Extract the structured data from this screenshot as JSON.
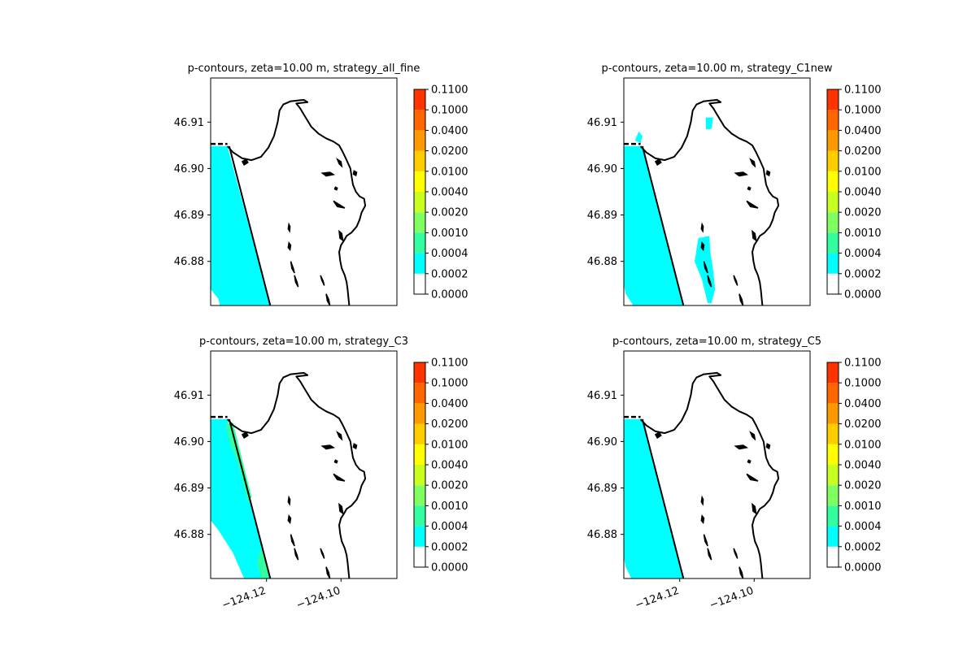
{
  "chart_data": [
    {
      "type": "heatmap",
      "title": "p-contours, zeta=10.00 m, strategy_all_fine",
      "xlabel": "",
      "ylabel": "",
      "xlim": [
        -124.135,
        -124.085
      ],
      "ylim": [
        46.8705,
        46.9195
      ],
      "x_ticks": [],
      "y_ticks": [
        {
          "value": 46.88,
          "label": "46.88"
        },
        {
          "value": 46.89,
          "label": "46.89"
        },
        {
          "value": 46.9,
          "label": "46.90"
        },
        {
          "value": 46.91,
          "label": "46.91"
        }
      ],
      "colorbar": {
        "levels": [
          "0.0000",
          "0.0002",
          "0.0004",
          "0.0010",
          "0.0020",
          "0.0040",
          "0.0100",
          "0.0200",
          "0.0400",
          "0.1000",
          "0.1100"
        ]
      },
      "shaded_regions": [
        {
          "level_index": 1,
          "band": "0.0002–0.0004",
          "polygon": [
            [
              -124.135,
              46.9048
            ],
            [
              -124.1305,
              46.9048
            ],
            [
              -124.119,
              46.8705
            ],
            [
              -124.1325,
              46.8705
            ],
            [
              -124.133,
              46.872
            ],
            [
              -124.135,
              46.874
            ]
          ]
        }
      ]
    },
    {
      "type": "heatmap",
      "title": "p-contours, zeta=10.00 m, strategy_C1new",
      "xlabel": "",
      "ylabel": "",
      "xlim": [
        -124.135,
        -124.085
      ],
      "ylim": [
        46.8705,
        46.9195
      ],
      "x_ticks": [],
      "y_ticks": [
        {
          "value": 46.88,
          "label": "46.88"
        },
        {
          "value": 46.89,
          "label": "46.89"
        },
        {
          "value": 46.9,
          "label": "46.90"
        },
        {
          "value": 46.91,
          "label": "46.91"
        }
      ],
      "colorbar": {
        "levels": [
          "0.0000",
          "0.0002",
          "0.0004",
          "0.0010",
          "0.0020",
          "0.0040",
          "0.0100",
          "0.0200",
          "0.0400",
          "0.1000",
          "0.1100"
        ]
      },
      "shaded_regions": [
        {
          "level_index": 1,
          "band": "0.0002–0.0004",
          "polygon": [
            [
              -124.135,
              46.9048
            ],
            [
              -124.13,
              46.9048
            ],
            [
              -124.119,
              46.8705
            ],
            [
              -124.1325,
              46.8705
            ],
            [
              -124.1345,
              46.873
            ],
            [
              -124.135,
              46.875
            ]
          ]
        },
        {
          "level_index": 1,
          "band": "0.0002–0.0004",
          "polygon": [
            [
              -124.132,
              46.906
            ],
            [
              -124.131,
              46.908
            ],
            [
              -124.13,
              46.907
            ],
            [
              -124.1305,
              46.9055
            ]
          ]
        },
        {
          "level_index": 1,
          "band": "0.0002–0.0004",
          "polygon": [
            [
              -124.115,
              46.885
            ],
            [
              -124.112,
              46.8855
            ],
            [
              -124.1118,
              46.882
            ],
            [
              -124.111,
              46.878
            ],
            [
              -124.1105,
              46.874
            ],
            [
              -124.1115,
              46.871
            ],
            [
              -124.1125,
              46.871
            ],
            [
              -124.114,
              46.876
            ],
            [
              -124.116,
              46.88
            ]
          ]
        },
        {
          "level_index": 1,
          "band": "0.0002–0.0004",
          "polygon": [
            [
              -124.113,
              46.911
            ],
            [
              -124.111,
              46.911
            ],
            [
              -124.1115,
              46.9085
            ],
            [
              -124.113,
              46.9085
            ]
          ]
        }
      ]
    },
    {
      "type": "heatmap",
      "title": "p-contours, zeta=10.00 m, strategy_C3",
      "xlabel": "",
      "ylabel": "",
      "xlim": [
        -124.135,
        -124.085
      ],
      "ylim": [
        46.8705,
        46.9195
      ],
      "x_ticks": [],
      "y_ticks": [
        {
          "value": 46.88,
          "label": "46.88"
        },
        {
          "value": 46.89,
          "label": "46.89"
        },
        {
          "value": 46.9,
          "label": "46.90"
        },
        {
          "value": 46.91,
          "label": "46.91"
        }
      ],
      "colorbar": {
        "levels": [
          "0.0000",
          "0.0002",
          "0.0004",
          "0.0010",
          "0.0020",
          "0.0040",
          "0.0100",
          "0.0200",
          "0.0400",
          "0.1000",
          "0.1100"
        ]
      },
      "shaded_regions": [
        {
          "level_index": 1,
          "band": "0.0002–0.0004",
          "polygon": [
            [
              -124.135,
              46.9048
            ],
            [
              -124.1305,
              46.9048
            ],
            [
              -124.119,
              46.8705
            ],
            [
              -124.126,
              46.8705
            ],
            [
              -124.129,
              46.876
            ],
            [
              -124.133,
              46.881
            ],
            [
              -124.135,
              46.883
            ]
          ]
        },
        {
          "level_index": 2,
          "band": "0.0004–0.0010",
          "polygon": [
            [
              -124.131,
              46.904
            ],
            [
              -124.129,
              46.904
            ],
            [
              -124.124,
              46.888
            ],
            [
              -124.125,
              46.887
            ],
            [
              -124.1275,
              46.895
            ],
            [
              -124.13,
              46.9
            ]
          ]
        },
        {
          "level_index": 2,
          "band": "0.0004–0.0010",
          "polygon": [
            [
              -124.1215,
              46.877
            ],
            [
              -124.12,
              46.874
            ],
            [
              -124.1195,
              46.8705
            ],
            [
              -124.1215,
              46.8705
            ],
            [
              -124.1225,
              46.874
            ]
          ]
        }
      ]
    },
    {
      "type": "heatmap",
      "title": "p-contours, zeta=10.00 m, strategy_C5",
      "xlabel": "",
      "ylabel": "",
      "xlim": [
        -124.135,
        -124.085
      ],
      "ylim": [
        46.8705,
        46.9195
      ],
      "x_ticks": [
        {
          "value": -124.12,
          "label": "−124.12"
        },
        {
          "value": -124.1,
          "label": "−124.10"
        }
      ],
      "y_ticks": [
        {
          "value": 46.88,
          "label": "46.88"
        },
        {
          "value": 46.89,
          "label": "46.89"
        },
        {
          "value": 46.9,
          "label": "46.90"
        },
        {
          "value": 46.91,
          "label": "46.91"
        }
      ],
      "colorbar": {
        "levels": [
          "0.0000",
          "0.0002",
          "0.0004",
          "0.0010",
          "0.0020",
          "0.0040",
          "0.0100",
          "0.0200",
          "0.0400",
          "0.1000",
          "0.1100"
        ]
      },
      "shaded_regions": [
        {
          "level_index": 1,
          "band": "0.0002–0.0004",
          "polygon": [
            [
              -124.135,
              46.9048
            ],
            [
              -124.13,
              46.9048
            ],
            [
              -124.119,
              46.8705
            ],
            [
              -124.133,
              46.8705
            ],
            [
              -124.1345,
              46.873
            ],
            [
              -124.135,
              46.875
            ]
          ]
        }
      ]
    }
  ],
  "bottom_x_tick_labels": [
    "−124.12",
    "−124.10"
  ],
  "colorbar_colors": [
    "#ffffff",
    "#00ffff",
    "#33ffa0",
    "#80ff60",
    "#c8ff20",
    "#ffff00",
    "#ffcc00",
    "#ff9900",
    "#ff6600",
    "#ff3300",
    "#ff0000"
  ],
  "coast_color": "#000000"
}
